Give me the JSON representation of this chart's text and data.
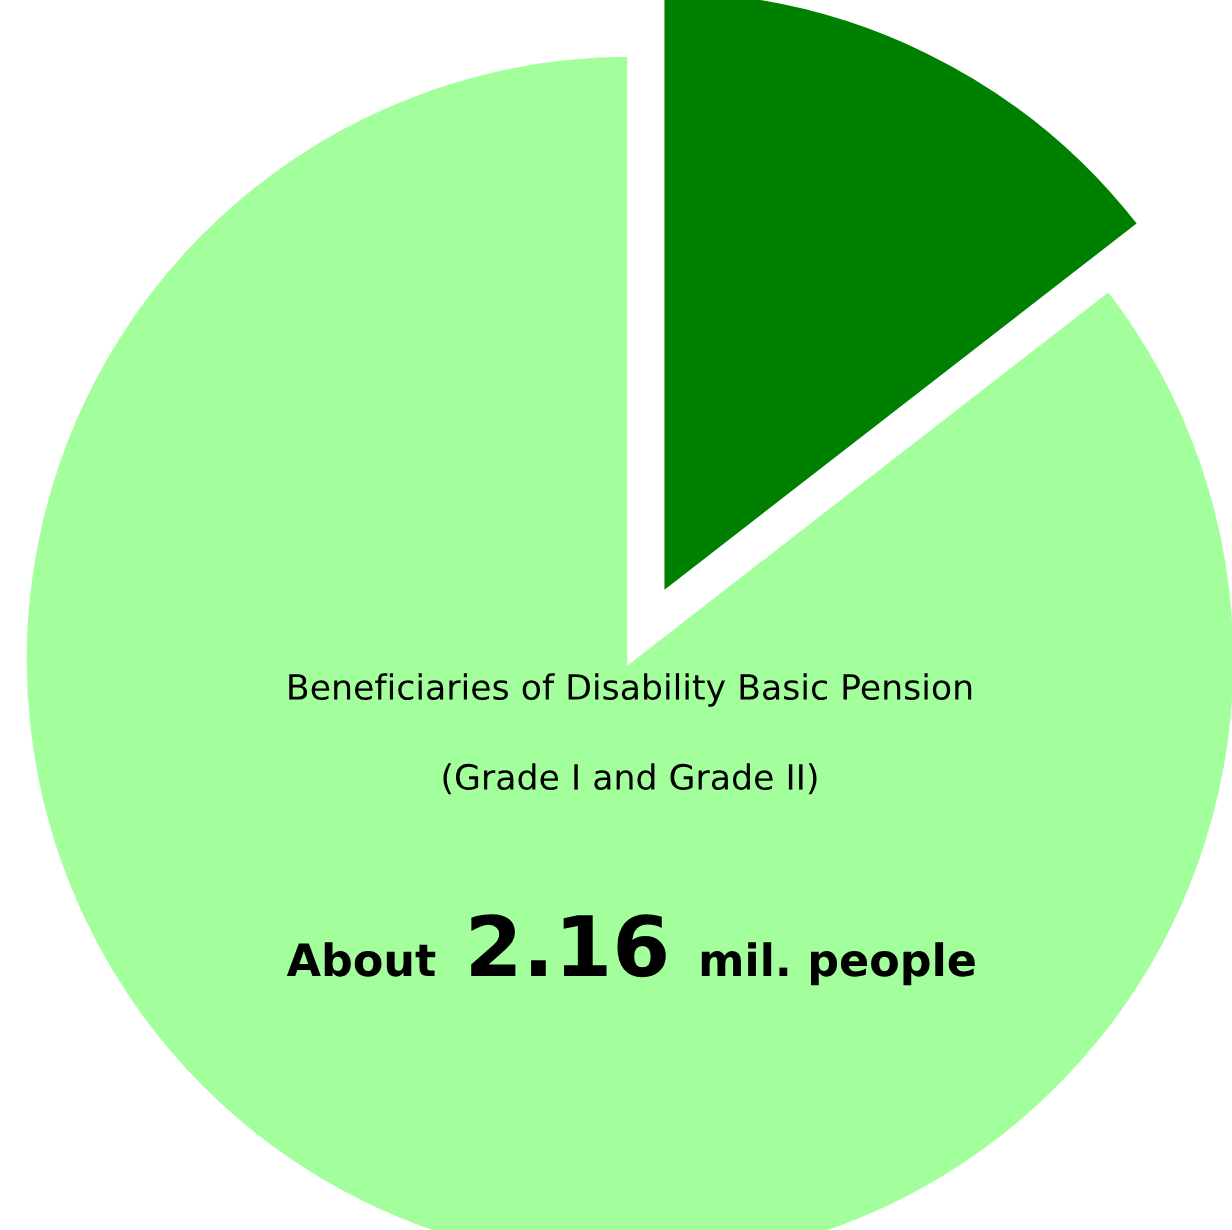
{
  "chart_data": {
    "type": "pie",
    "categories": [
      null,
      null
    ],
    "values": [
      14.5,
      85.5
    ],
    "colors": [
      "#008000",
      "#a2ff9c"
    ],
    "annotations": [
      "Beneficiaries of Disability Basic Pension",
      "(Grade I and Grade II)",
      "About",
      "2.16",
      "mil. people"
    ]
  }
}
